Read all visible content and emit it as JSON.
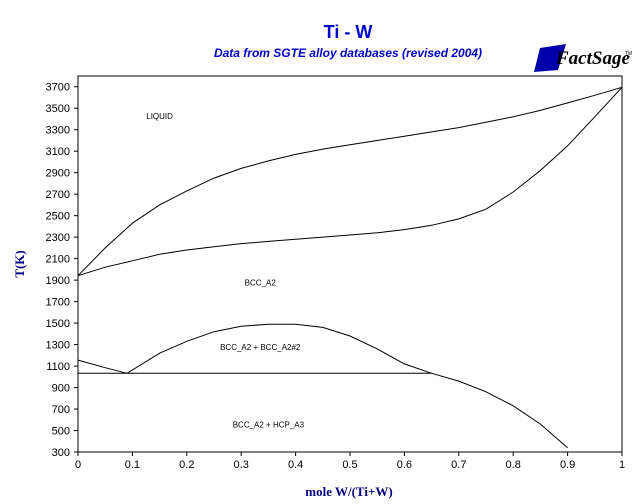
{
  "colors": {
    "title": "#0000CC",
    "lines": "#000000",
    "axis_title": "#000080",
    "logo": "#0000AA"
  },
  "logo": {
    "main": "FactSage",
    "mark": "TM",
    "icon": "factsage-logo-icon"
  },
  "chart_data": {
    "type": "line",
    "title": "Ti - W",
    "subtitle": "Data from SGTE alloy databases (revised 2004)",
    "xlabel": "mole W/(Ti+W)",
    "ylabel": "T(K)",
    "xlim": [
      0,
      1
    ],
    "ylim": [
      300,
      3800
    ],
    "xticks": [
      0,
      0.1,
      0.2,
      0.3,
      0.4,
      0.5,
      0.6,
      0.7,
      0.8,
      0.9,
      1
    ],
    "yticks": [
      300,
      500,
      700,
      900,
      1100,
      1300,
      1500,
      1700,
      1900,
      2100,
      2300,
      2500,
      2700,
      2900,
      3100,
      3300,
      3500,
      3700
    ],
    "grid": false,
    "regions": [
      {
        "label": "LIQUID",
        "x": 0.15,
        "y": 3400
      },
      {
        "label": "BCC_A2",
        "x": 0.335,
        "y": 1850
      },
      {
        "label": "BCC_A2 + BCC_A2#2",
        "x": 0.335,
        "y": 1250
      },
      {
        "label": "BCC_A2 + HCP_A3",
        "x": 0.35,
        "y": 530
      }
    ],
    "series": [
      {
        "id": "liquidus",
        "x": [
          0,
          0.05,
          0.1,
          0.15,
          0.2,
          0.25,
          0.3,
          0.35,
          0.4,
          0.45,
          0.5,
          0.55,
          0.6,
          0.65,
          0.7,
          0.75,
          0.8,
          0.85,
          0.9,
          0.95,
          1.0
        ],
        "y": [
          1941,
          2200,
          2430,
          2600,
          2730,
          2850,
          2940,
          3010,
          3070,
          3120,
          3160,
          3200,
          3240,
          3280,
          3320,
          3370,
          3420,
          3480,
          3550,
          3620,
          3695
        ]
      },
      {
        "id": "solidus",
        "x": [
          0,
          0.05,
          0.1,
          0.15,
          0.2,
          0.25,
          0.3,
          0.35,
          0.4,
          0.45,
          0.5,
          0.55,
          0.6,
          0.65,
          0.7,
          0.75,
          0.8,
          0.85,
          0.9,
          0.95,
          1.0
        ],
        "y": [
          1941,
          2020,
          2080,
          2140,
          2180,
          2210,
          2240,
          2260,
          2280,
          2300,
          2320,
          2340,
          2370,
          2410,
          2470,
          2560,
          2720,
          2920,
          3150,
          3420,
          3695
        ]
      },
      {
        "id": "miscibility-gap",
        "x": [
          0.09,
          0.15,
          0.2,
          0.25,
          0.3,
          0.35,
          0.4,
          0.45,
          0.5,
          0.55,
          0.6,
          0.65
        ],
        "y": [
          1033,
          1220,
          1330,
          1420,
          1470,
          1490,
          1490,
          1460,
          1380,
          1260,
          1120,
          1033
        ]
      },
      {
        "id": "ti-rich-boundary",
        "x": [
          0,
          0.05,
          0.09
        ],
        "y": [
          1155,
          1085,
          1033
        ]
      },
      {
        "id": "w-solvus",
        "x": [
          0.65,
          0.7,
          0.75,
          0.8,
          0.85,
          0.9
        ],
        "y": [
          1033,
          960,
          860,
          730,
          560,
          340
        ]
      },
      {
        "id": "eutectoid",
        "x": [
          0,
          0.65
        ],
        "y": [
          1033,
          1033
        ]
      }
    ]
  }
}
